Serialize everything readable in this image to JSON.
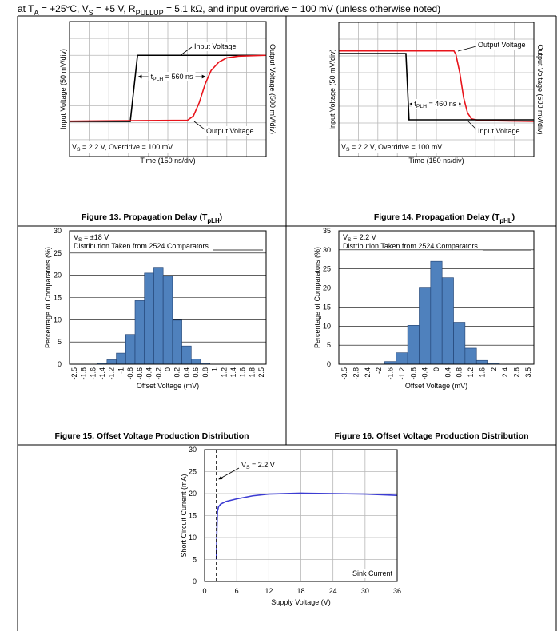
{
  "header": [
    {
      "text": "at T"
    },
    {
      "text": "A",
      "sub": true
    },
    {
      "text": " = +25°C, V"
    },
    {
      "text": "S",
      "sub": true
    },
    {
      "text": " = +5 V, R"
    },
    {
      "text": "PULLUP",
      "sub": true
    },
    {
      "text": " = 5.1 kΩ, and input overdrive = 100 mV (unless otherwise noted)"
    }
  ],
  "chart_data": [
    {
      "type": "line",
      "caption": [
        {
          "text": "Figure 13. Propagation Delay (T"
        },
        {
          "text": "pLH",
          "sub": true
        },
        {
          "text": ")"
        }
      ],
      "xlabel": "Time (150 ns/div)",
      "ylabel": "Input Voltage (50 mV/div)",
      "y2label": "Output Voltage (500 mV/div)",
      "xlim": [
        0,
        10
      ],
      "ylim": [
        0,
        8
      ],
      "xticks": [
        0,
        1,
        2,
        3,
        4,
        5,
        6,
        7,
        8,
        9,
        10
      ],
      "yticks": [
        0,
        1,
        2,
        3,
        4,
        5,
        6,
        7,
        8
      ],
      "tick_labels": false,
      "grid": true,
      "note": [
        {
          "text": "V"
        },
        {
          "text": "S",
          "sub": true
        },
        {
          "text": " = 2.2 V, Overdrive = 100 mV"
        }
      ],
      "interval": {
        "from": 3.46,
        "to": 6.95,
        "label": [
          {
            "text": "t"
          },
          {
            "text": "PLH",
            "sub": true
          },
          {
            "text": " = 560 ns"
          }
        ]
      },
      "series": [
        {
          "name": "Input Voltage",
          "color": "#000000",
          "x": [
            0,
            3.09,
            3.46,
            10
          ],
          "values": [
            2.08,
            2.08,
            6.0,
            6.0
          ]
        },
        {
          "name": "Output Voltage",
          "color": "#e8141b",
          "x": [
            0,
            6.0,
            6.3,
            6.6,
            6.9,
            7.2,
            7.6,
            8.0,
            8.6,
            10
          ],
          "values": [
            2.1,
            2.15,
            2.4,
            3.2,
            4.3,
            5.1,
            5.6,
            5.85,
            5.95,
            6.0
          ]
        }
      ]
    },
    {
      "type": "line",
      "caption": [
        {
          "text": "Figure 14. Propagation Delay (T"
        },
        {
          "text": "pHL",
          "sub": true
        },
        {
          "text": ")"
        }
      ],
      "xlabel": "Time (150 ns/div)",
      "ylabel": "Input Voltage (50 mV/div)",
      "y2label": "Output Voltage (500 mV/div)",
      "xlim": [
        0,
        10
      ],
      "ylim": [
        0,
        8
      ],
      "xticks": [
        0,
        1,
        2,
        3,
        4,
        5,
        6,
        7,
        8,
        9,
        10
      ],
      "yticks": [
        0,
        1,
        2,
        3,
        4,
        5,
        6,
        7,
        8
      ],
      "tick_labels": false,
      "grid": true,
      "note": [
        {
          "text": "V"
        },
        {
          "text": "S",
          "sub": true
        },
        {
          "text": " = 2.2 V, Overdrive = 100 mV"
        }
      ],
      "interval": {
        "from": 3.6,
        "to": 6.3,
        "label": [
          {
            "text": "t"
          },
          {
            "text": "PLH",
            "sub": true
          },
          {
            "text": " = 460 ns"
          }
        ]
      },
      "series": [
        {
          "name": "Output Voltage",
          "color": "#e8141b",
          "x": [
            0,
            5.9,
            6.0,
            6.2,
            6.4,
            6.6,
            6.8,
            7.2,
            10
          ],
          "values": [
            6.3,
            6.3,
            6.1,
            5.0,
            3.5,
            2.6,
            2.25,
            2.15,
            2.1
          ]
        },
        {
          "name": "Input Voltage",
          "color": "#000000",
          "x": [
            0,
            3.44,
            3.6,
            10
          ],
          "values": [
            6.14,
            6.14,
            2.19,
            2.19
          ]
        }
      ]
    },
    {
      "type": "bar",
      "caption": [
        {
          "text": "Figure 15. Offset Voltage Production Distribution"
        }
      ],
      "xlabel": "Offset Voltage (mV)",
      "ylabel": "Percentage of Comparators (%)",
      "categories": [
        "-2.5",
        "-1.8",
        "-1.6",
        "-1.4",
        "-1.2",
        "-1",
        "-0.8",
        "-0.6",
        "-0.4",
        "-0.2",
        "0",
        "0.2",
        "0.4",
        "0.6",
        "0.8",
        "1",
        "1.2",
        "1.4",
        "1.6",
        "1.8",
        "2.5"
      ],
      "values": [
        0,
        0,
        0,
        0.3,
        1,
        2.5,
        6.7,
        14.3,
        20.5,
        21.8,
        19.8,
        9.9,
        4.1,
        1.2,
        0.3,
        0,
        0,
        0,
        0,
        0,
        0
      ],
      "color": "#4f81bd",
      "ylim": [
        0,
        30
      ],
      "yticks": [
        0,
        5,
        10,
        15,
        20,
        25,
        30
      ],
      "grid": true,
      "note": [
        {
          "text": "V"
        },
        {
          "text": "S",
          "sub": true
        },
        {
          "text": " = ±18 V"
        }
      ],
      "note2": "Distribution Taken from 2524 Comparators"
    },
    {
      "type": "bar",
      "caption": [
        {
          "text": "Figure 16. Offset Voltage Production Distribution"
        }
      ],
      "xlabel": "Offset Voltage (mV)",
      "ylabel": "Percentage of Comparators (%)",
      "categories": [
        "-3.5",
        "-2.8",
        "-2.4",
        "-2",
        "-1.6",
        "-1.2",
        "-0.8",
        "-0.4",
        "0",
        "0.4",
        "0.8",
        "1.2",
        "1.6",
        "2",
        "2.4",
        "2.8",
        "3.5"
      ],
      "values": [
        0,
        0,
        0,
        0,
        0.7,
        3,
        10.2,
        20.2,
        27,
        22.7,
        11,
        4.2,
        1,
        0.3,
        0,
        0,
        0
      ],
      "color": "#4f81bd",
      "ylim": [
        0,
        35
      ],
      "yticks": [
        0,
        5,
        10,
        15,
        20,
        25,
        30,
        35
      ],
      "grid": true,
      "note": [
        {
          "text": "V"
        },
        {
          "text": "S",
          "sub": true
        },
        {
          "text": " = 2.2 V"
        }
      ],
      "note2": "Distribution Taken from 2524 Comparators"
    },
    {
      "type": "line",
      "xlabel": "Supply Voltage (V)",
      "ylabel": "Short Circuit Current (mA)",
      "xlim": [
        0,
        36
      ],
      "ylim": [
        0,
        30
      ],
      "xticks": [
        0,
        6,
        12,
        18,
        24,
        30,
        36
      ],
      "yticks": [
        0,
        5,
        10,
        15,
        20,
        25,
        30
      ],
      "tick_labels": true,
      "grid": true,
      "marker": {
        "x": 2.2,
        "label": [
          {
            "text": "V"
          },
          {
            "text": "S",
            "sub": true
          },
          {
            "text": " = 2.2 V"
          }
        ]
      },
      "series": [
        {
          "name": "Sink Current",
          "color": "#3c3cd2",
          "x": [
            2.2,
            2.3,
            2.4,
            2.6,
            3,
            4,
            6,
            9,
            12,
            18,
            24,
            30,
            36
          ],
          "values": [
            5,
            12,
            16,
            17,
            17.6,
            18.2,
            18.8,
            19.5,
            19.9,
            20.1,
            20,
            19.9,
            19.6
          ]
        }
      ]
    }
  ]
}
